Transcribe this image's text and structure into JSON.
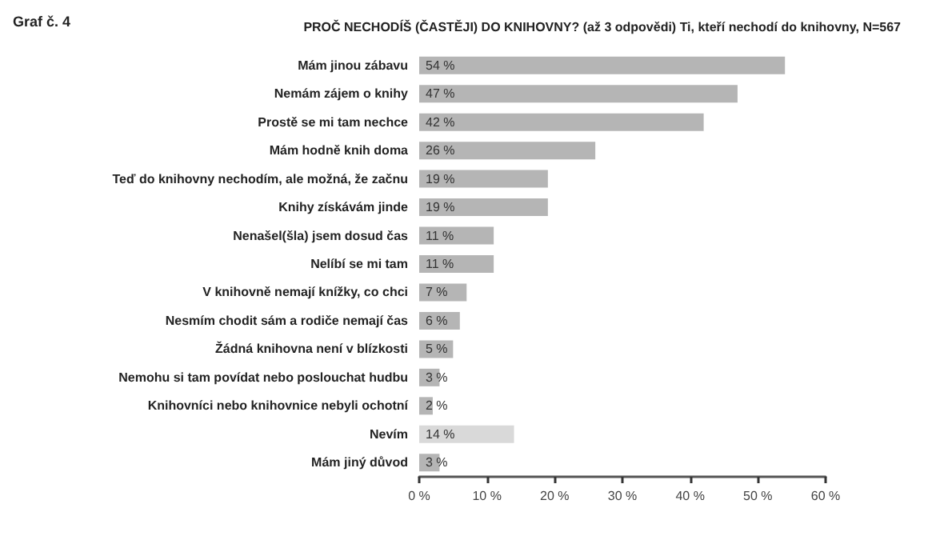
{
  "chart_data": {
    "type": "bar",
    "orientation": "horizontal",
    "title": "PROČ NECHODÍŠ (ČASTĚJI) DO KNIHOVNY? (až 3 odpovědi) Ti, kteří nechodí do knihovny, N=567",
    "annotations": [
      "Graf č. 4"
    ],
    "categories": [
      "Mám jinou zábavu",
      "Nemám zájem o knihy",
      "Prostě se mi tam nechce",
      "Mám hodně knih doma",
      "Teď do knihovny nechodím, ale možná, že začnu",
      "Knihy získávám jinde",
      "Nenašel(šla) jsem dosud čas",
      "Nelíbí se mi tam",
      "V knihovně nemají knížky, co chci",
      "Nesmím chodit sám a rodiče nemají čas",
      "Žádná knihovna není v blízkosti",
      "Nemohu si tam povídat nebo poslouchat hudbu",
      "Knihovníci nebo knihovnice nebyli ochotní",
      "Nevím",
      "Mám jiný důvod"
    ],
    "values": [
      54,
      47,
      42,
      26,
      19,
      19,
      11,
      11,
      7,
      6,
      5,
      3,
      2,
      14,
      3
    ],
    "value_labels": [
      "54 %",
      "47 %",
      "42 %",
      "26 %",
      "19 %",
      "19 %",
      "11 %",
      "11 %",
      "7 %",
      "6 %",
      "5 %",
      "3 %",
      "2 %",
      "14 %",
      "3 %"
    ],
    "colors": [
      "#b5b5b5",
      "#b5b5b5",
      "#b5b5b5",
      "#b5b5b5",
      "#b5b5b5",
      "#b5b5b5",
      "#b5b5b5",
      "#b5b5b5",
      "#b5b5b5",
      "#b5b5b5",
      "#b5b5b5",
      "#b5b5b5",
      "#b5b5b5",
      "#d9d9d9",
      "#b5b5b5"
    ],
    "xlim": [
      0,
      60
    ],
    "xticks": [
      {
        "value": 0,
        "label": "0 %"
      },
      {
        "value": 10,
        "label": "10 %"
      },
      {
        "value": 20,
        "label": "20 %"
      },
      {
        "value": 30,
        "label": "30 %"
      },
      {
        "value": 40,
        "label": "40 %"
      },
      {
        "value": 50,
        "label": "50 %"
      },
      {
        "value": 60,
        "label": "60 %"
      }
    ],
    "grid": false
  }
}
